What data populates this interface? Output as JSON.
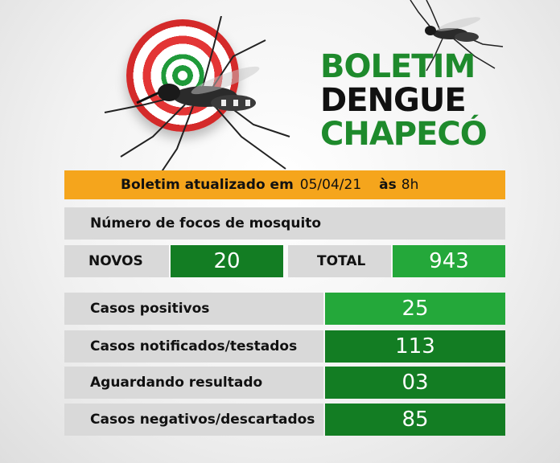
{
  "header": {
    "title_line1": "BOLETIM",
    "title_line2": "DENGUE",
    "title_line3": "CHAPECÓ"
  },
  "update": {
    "label": "Boletim atualizado em",
    "date": "05/04/21",
    "at_label": "às",
    "hour": "8h"
  },
  "focos": {
    "heading": "Número de focos de mosquito",
    "novos_label": "NOVOS",
    "novos_value": "20",
    "total_label": "TOTAL",
    "total_value": "943"
  },
  "cases": [
    {
      "label": "Casos positivos",
      "value": "25",
      "color": "#24a83a"
    },
    {
      "label": "Casos notificados/testados",
      "value": "113",
      "color": "#137d23"
    },
    {
      "label": "Aguardando resultado",
      "value": "03",
      "color": "#137d23"
    },
    {
      "label": "Casos negativos/descartados",
      "value": "85",
      "color": "#137d23"
    }
  ],
  "colors": {
    "brand_green": "#1e8a2c",
    "accent_orange": "#f5a51c",
    "panel_gray": "#d9d9d9"
  },
  "icons": [
    "target-icon",
    "mosquito-icon"
  ]
}
